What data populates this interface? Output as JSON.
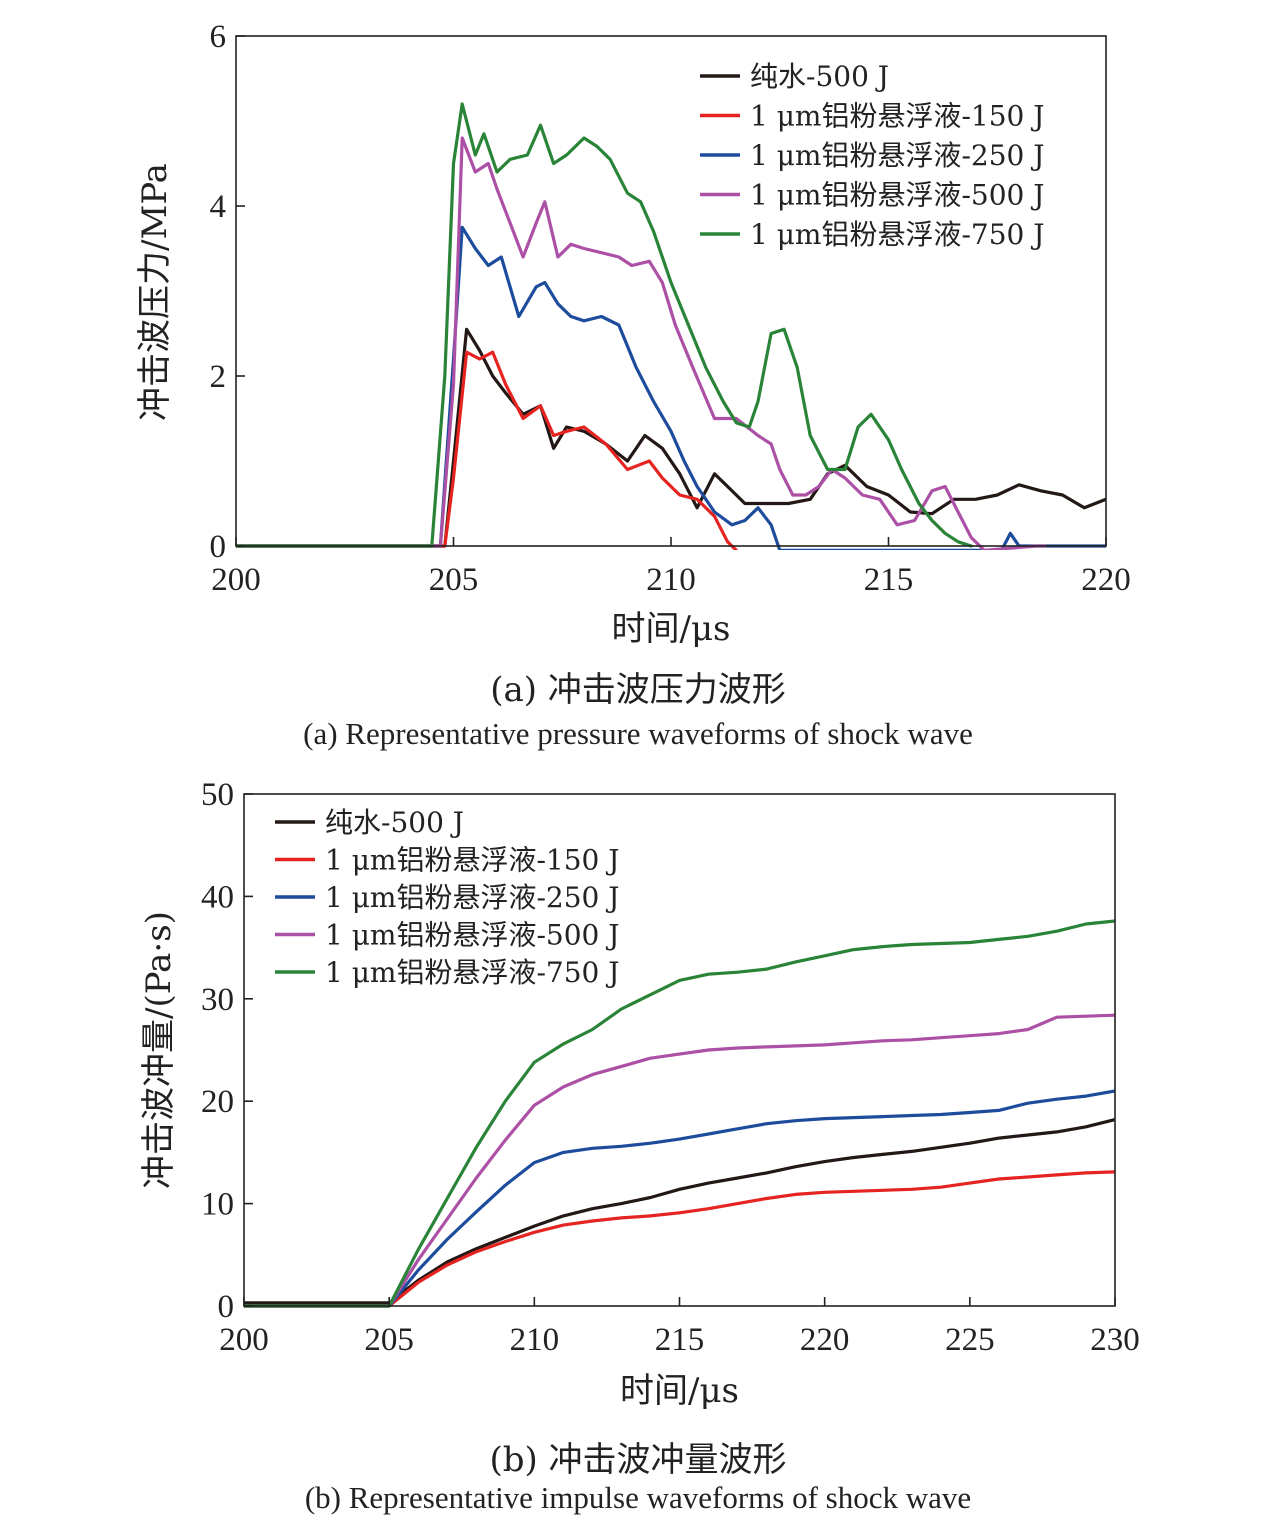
{
  "chart_data": [
    {
      "type": "line",
      "xlabel": "时间/μs",
      "ylabel": "冲击波压力/MPa",
      "xlim": [
        200,
        220
      ],
      "ylim": [
        0,
        6
      ],
      "xticks": [
        "200",
        "205",
        "210",
        "215",
        "220"
      ],
      "yticks": [
        "0",
        "2",
        "4",
        "6"
      ],
      "grid": false,
      "legend_position": "top-right",
      "caption_cn": "(a) 冲击波压力波形",
      "caption_en": "(a) Representative pressure waveforms of shock wave",
      "series": [
        {
          "name": "纯水-500 J",
          "color": "#231815",
          "x": [
            200,
            204.8,
            205.0,
            205.3,
            205.6,
            205.9,
            206.2,
            206.6,
            207.0,
            207.3,
            207.6,
            208.0,
            208.5,
            209.0,
            209.4,
            209.8,
            210.2,
            210.6,
            211.0,
            211.3,
            211.7,
            212.2,
            212.7,
            213.2,
            213.6,
            214.0,
            214.5,
            215.0,
            215.5,
            216.0,
            216.5,
            217.0,
            217.5,
            218.0,
            218.5,
            219.0,
            219.5,
            220.0
          ],
          "y": [
            0,
            0,
            1.0,
            2.55,
            2.3,
            2.0,
            1.8,
            1.55,
            1.65,
            1.15,
            1.4,
            1.35,
            1.2,
            1.0,
            1.3,
            1.15,
            0.85,
            0.45,
            0.85,
            0.7,
            0.5,
            0.5,
            0.5,
            0.55,
            0.85,
            0.95,
            0.7,
            0.6,
            0.4,
            0.38,
            0.55,
            0.55,
            0.6,
            0.72,
            0.65,
            0.6,
            0.45,
            0.55
          ]
        },
        {
          "name": "1 μm铝粉悬浮液-150 J",
          "color": "#e52421",
          "x": [
            200,
            204.8,
            205.0,
            205.3,
            205.6,
            205.9,
            206.2,
            206.6,
            207.0,
            207.3,
            207.6,
            208.0,
            208.5,
            209.0,
            209.5,
            209.8,
            210.2,
            210.6,
            211.0,
            211.3,
            211.5
          ],
          "y": [
            0,
            0,
            0.8,
            2.28,
            2.2,
            2.28,
            1.9,
            1.5,
            1.65,
            1.3,
            1.35,
            1.4,
            1.2,
            0.9,
            1.0,
            0.8,
            0.6,
            0.55,
            0.35,
            0.05,
            -0.05
          ]
        },
        {
          "name": "1 μm铝粉悬浮液-250 J",
          "color": "#1d4c9c",
          "x": [
            200,
            204.7,
            205.0,
            205.2,
            205.5,
            205.8,
            206.1,
            206.5,
            206.9,
            207.1,
            207.4,
            207.7,
            208.0,
            208.4,
            208.8,
            209.2,
            209.6,
            210.0,
            210.3,
            210.6,
            211.0,
            211.4,
            211.7,
            212.0,
            212.3,
            212.5,
            217.6,
            217.8,
            218.0,
            220.0
          ],
          "y": [
            0,
            0,
            2.2,
            3.75,
            3.5,
            3.3,
            3.4,
            2.7,
            3.05,
            3.1,
            2.85,
            2.7,
            2.65,
            2.7,
            2.6,
            2.1,
            1.7,
            1.35,
            1.0,
            0.7,
            0.4,
            0.25,
            0.3,
            0.45,
            0.25,
            -0.05,
            -0.05,
            0.15,
            0.0,
            0.0
          ]
        },
        {
          "name": "1 μm铝粉悬浮液-500 J",
          "color": "#ac50a5",
          "x": [
            200,
            204.7,
            205.0,
            205.2,
            205.5,
            205.8,
            206.0,
            206.3,
            206.6,
            206.9,
            207.1,
            207.4,
            207.7,
            208.0,
            208.4,
            208.8,
            209.1,
            209.5,
            209.8,
            210.1,
            210.5,
            211.0,
            211.5,
            212.0,
            212.3,
            212.5,
            212.8,
            213.1,
            213.4,
            213.7,
            214.0,
            214.4,
            214.8,
            215.2,
            215.6,
            216.0,
            216.3,
            216.6,
            216.9,
            217.2,
            218.4,
            218.6
          ],
          "y": [
            0,
            0,
            1.9,
            4.8,
            4.4,
            4.5,
            4.2,
            3.8,
            3.4,
            3.8,
            4.05,
            3.4,
            3.55,
            3.5,
            3.45,
            3.4,
            3.3,
            3.35,
            3.1,
            2.6,
            2.1,
            1.5,
            1.5,
            1.3,
            1.2,
            0.9,
            0.6,
            0.6,
            0.7,
            0.9,
            0.8,
            0.6,
            0.55,
            0.25,
            0.3,
            0.65,
            0.7,
            0.4,
            0.1,
            -0.05,
            0.0,
            0.0
          ]
        },
        {
          "name": "1 μm铝粉悬浮液-750 J",
          "color": "#2a8438",
          "x": [
            200,
            204.5,
            204.8,
            205.0,
            205.2,
            205.5,
            205.7,
            206.0,
            206.3,
            206.7,
            207.0,
            207.3,
            207.6,
            208.0,
            208.3,
            208.6,
            209.0,
            209.3,
            209.6,
            210.0,
            210.4,
            210.8,
            211.2,
            211.5,
            211.8,
            212.0,
            212.3,
            212.6,
            212.9,
            213.2,
            213.6,
            214.0,
            214.3,
            214.6,
            215.0,
            215.3,
            215.7,
            216.0,
            216.3,
            216.6,
            216.9
          ],
          "y": [
            0,
            0,
            2.0,
            4.5,
            5.2,
            4.6,
            4.85,
            4.4,
            4.55,
            4.6,
            4.95,
            4.5,
            4.6,
            4.8,
            4.7,
            4.55,
            4.15,
            4.05,
            3.7,
            3.1,
            2.6,
            2.1,
            1.7,
            1.45,
            1.4,
            1.7,
            2.5,
            2.55,
            2.1,
            1.3,
            0.9,
            0.9,
            1.4,
            1.55,
            1.25,
            0.9,
            0.5,
            0.3,
            0.15,
            0.05,
            0.0
          ]
        }
      ]
    },
    {
      "type": "line",
      "xlabel": "时间/μs",
      "ylabel": "冲击波冲量/(Pa·s)",
      "xlim": [
        200,
        230
      ],
      "ylim": [
        0,
        50
      ],
      "xticks": [
        "200",
        "205",
        "210",
        "215",
        "220",
        "225",
        "230"
      ],
      "yticks": [
        "0",
        "10",
        "20",
        "30",
        "40",
        "50"
      ],
      "grid": false,
      "legend_position": "top-left",
      "caption_cn": "(b) 冲击波冲量波形",
      "caption_en": "(b) Representative impulse waveforms of shock wave",
      "series": [
        {
          "name": "纯水-500 J",
          "color": "#231815",
          "x": [
            200,
            205.0,
            206,
            207,
            208,
            209,
            210,
            211,
            212,
            213,
            214,
            215,
            216,
            217,
            218,
            219,
            220,
            221,
            222,
            223,
            224,
            225,
            226,
            227,
            228,
            229,
            230
          ],
          "y": [
            0.3,
            0.3,
            2.5,
            4.3,
            5.6,
            6.7,
            7.8,
            8.8,
            9.5,
            10.0,
            10.6,
            11.4,
            12.0,
            12.5,
            13.0,
            13.6,
            14.1,
            14.5,
            14.8,
            15.1,
            15.5,
            15.9,
            16.4,
            16.7,
            17.0,
            17.5,
            18.2
          ]
        },
        {
          "name": "1 μm铝粉悬浮液-150 J",
          "color": "#e52421",
          "x": [
            200,
            205.0,
            206,
            207,
            208,
            209,
            210,
            211,
            212,
            213,
            214,
            215,
            216,
            217,
            218,
            219,
            220,
            221,
            222,
            223,
            224,
            225,
            226,
            227,
            228,
            229,
            230
          ],
          "y": [
            0,
            0,
            2.3,
            4.0,
            5.3,
            6.3,
            7.2,
            7.9,
            8.3,
            8.6,
            8.8,
            9.1,
            9.5,
            10.0,
            10.5,
            10.9,
            11.1,
            11.2,
            11.3,
            11.4,
            11.6,
            12.0,
            12.4,
            12.6,
            12.8,
            13.0,
            13.1
          ]
        },
        {
          "name": "1 μm铝粉悬浮液-250 J",
          "color": "#1d4c9c",
          "x": [
            200,
            205.0,
            206,
            207,
            208,
            209,
            210,
            211,
            212,
            213,
            214,
            215,
            216,
            217,
            218,
            219,
            220,
            221,
            222,
            223,
            224,
            225,
            226,
            227,
            228,
            229,
            230
          ],
          "y": [
            0,
            0,
            3.5,
            6.5,
            9.2,
            11.8,
            14.0,
            15.0,
            15.4,
            15.6,
            15.9,
            16.3,
            16.8,
            17.3,
            17.8,
            18.1,
            18.3,
            18.4,
            18.5,
            18.6,
            18.7,
            18.9,
            19.1,
            19.8,
            20.2,
            20.5,
            21.0
          ]
        },
        {
          "name": "1 μm铝粉悬浮液-500 J",
          "color": "#ac50a5",
          "x": [
            200,
            205.0,
            206,
            207,
            208,
            209,
            210,
            211,
            212,
            213,
            214,
            215,
            216,
            217,
            218,
            219,
            220,
            221,
            222,
            223,
            224,
            225,
            226,
            227,
            228,
            229,
            230
          ],
          "y": [
            0,
            0,
            4.5,
            8.5,
            12.5,
            16.2,
            19.6,
            21.4,
            22.6,
            23.4,
            24.2,
            24.6,
            25.0,
            25.2,
            25.3,
            25.4,
            25.5,
            25.7,
            25.9,
            26.0,
            26.2,
            26.4,
            26.6,
            27.0,
            28.2,
            28.3,
            28.4
          ]
        },
        {
          "name": "1 μm铝粉悬浮液-750 J",
          "color": "#2a8438",
          "x": [
            200,
            205.0,
            206,
            207,
            208,
            209,
            210,
            211,
            212,
            213,
            214,
            215,
            216,
            217,
            218,
            219,
            220,
            221,
            222,
            223,
            224,
            225,
            226,
            227,
            228,
            229,
            230
          ],
          "y": [
            0,
            0,
            5.5,
            10.5,
            15.5,
            20.0,
            23.8,
            25.6,
            27.0,
            29.0,
            30.4,
            31.8,
            32.4,
            32.6,
            32.9,
            33.6,
            34.2,
            34.8,
            35.1,
            35.3,
            35.4,
            35.5,
            35.8,
            36.1,
            36.6,
            37.3,
            37.6
          ]
        }
      ]
    }
  ]
}
